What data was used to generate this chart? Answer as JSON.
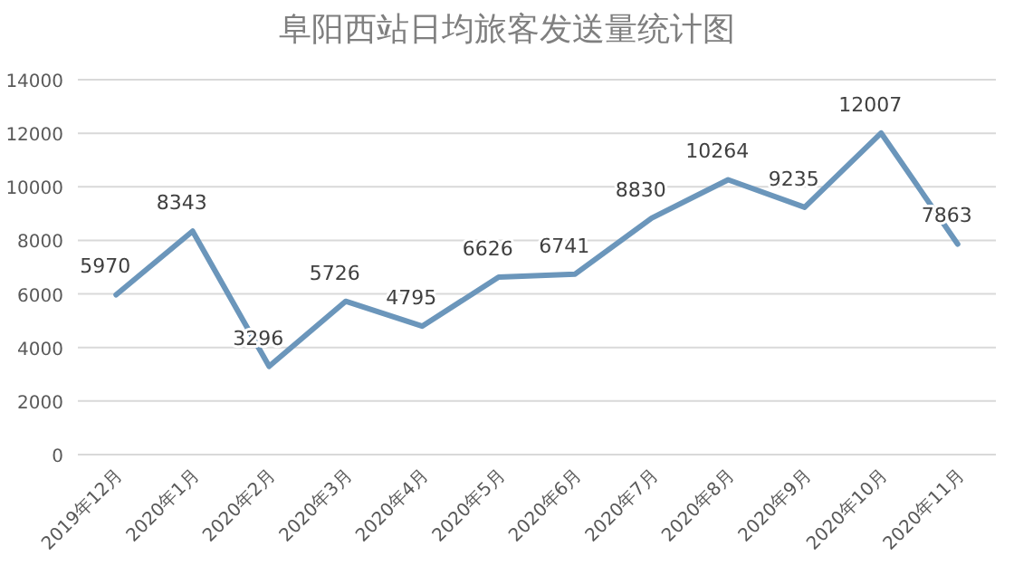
{
  "chart_data": {
    "type": "line",
    "title": "阜阳西站日均旅客发送量统计图",
    "categories": [
      "2019年12月",
      "2020年1月",
      "2020年2月",
      "2020年3月",
      "2020年4月",
      "2020年5月",
      "2020年6月",
      "2020年7月",
      "2020年8月",
      "2020年9月",
      "2020年10月",
      "2020年11月"
    ],
    "series": [
      {
        "color": "#6b96bb",
        "values": [
          5970,
          8343,
          3296,
          5726,
          4795,
          6626,
          6741,
          8830,
          10264,
          9235,
          12007,
          7863
        ]
      }
    ],
    "ylim": [
      0,
      14000
    ],
    "yticks": [
      0,
      2000,
      4000,
      6000,
      8000,
      10000,
      12000,
      14000
    ],
    "grid": "y",
    "data_labels": true,
    "marker": "none",
    "line_style": "solid"
  }
}
